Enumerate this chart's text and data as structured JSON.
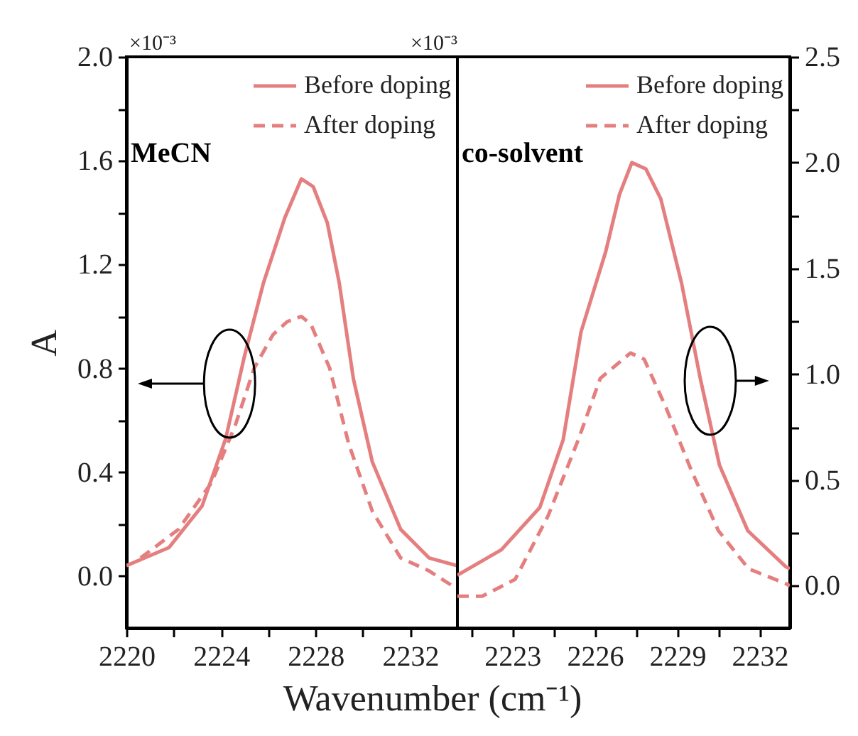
{
  "chart_data": [
    {
      "type": "line",
      "ylabel": "A",
      "xlabel": "Wavenumber  (cm⁻¹)",
      "annotations": [
        "×10⁻³",
        "MeCN"
      ],
      "legend": "top right",
      "grid": false,
      "marker": "none",
      "xlim": [
        2220,
        2234
      ],
      "xticks": [
        2220,
        {
          "value": 2222,
          "label": null
        },
        2224,
        {
          "value": 2226,
          "label": null
        },
        2228,
        {
          "value": 2230,
          "label": null
        },
        2232
      ],
      "ylim": [
        -0.2,
        2.0
      ],
      "yticks": [
        {
          "value": 0,
          "label": "0.0"
        },
        {
          "value": 0.2,
          "label": null
        },
        0.4,
        {
          "value": 0.6,
          "label": null
        },
        0.8,
        {
          "value": 1.0,
          "label": null
        },
        1.2,
        {
          "value": 1.4,
          "label": null
        },
        1.6,
        {
          "value": 1.8,
          "label": null
        },
        {
          "value": 2,
          "label": "2.0"
        }
      ],
      "series": [
        {
          "name": "Before doping",
          "color": "#e57f7f",
          "line_style": "solid",
          "x": [
            2220,
            2221.8,
            2223.2,
            2224.2,
            2225.0,
            2225.8,
            2226.7,
            2227.4,
            2227.9,
            2228.5,
            2229.0,
            2229.6,
            2230.4,
            2231.6,
            2232.8,
            2234
          ],
          "values": [
            0.04,
            0.11,
            0.27,
            0.53,
            0.85,
            1.13,
            1.38,
            1.53,
            1.5,
            1.36,
            1.13,
            0.76,
            0.44,
            0.18,
            0.07,
            0.04
          ]
        },
        {
          "name": "After doping",
          "color": "#e57f7f",
          "line_style": "dashed",
          "x": [
            2220.6,
            2222.2,
            2223.6,
            2224.6,
            2225.4,
            2226.2,
            2226.8,
            2227.4,
            2227.8,
            2228.6,
            2229.4,
            2230.4,
            2231.6,
            2232.8,
            2234
          ],
          "values": [
            0.07,
            0.18,
            0.36,
            0.58,
            0.8,
            0.93,
            0.98,
            1.0,
            0.97,
            0.8,
            0.51,
            0.25,
            0.07,
            0.02,
            -0.05
          ]
        }
      ]
    },
    {
      "type": "line",
      "annotations": [
        "×10⁻³",
        "co-solvent"
      ],
      "legend": "top right",
      "grid": false,
      "marker": "none",
      "xlim": [
        2221,
        2233.1
      ],
      "xticks": [
        {
          "value": 2221.5,
          "label": null
        },
        2223,
        {
          "value": 2224.5,
          "label": null
        },
        2226,
        {
          "value": 2227.5,
          "label": null
        },
        2229,
        {
          "value": 2230.5,
          "label": null
        },
        2232
      ],
      "y2lim": [
        -0.2,
        2.5
      ],
      "y2ticks": [
        {
          "value": 0,
          "label": "0.0"
        },
        {
          "value": 0.25,
          "label": null
        },
        0.5,
        {
          "value": 0.75,
          "label": null
        },
        {
          "value": 1,
          "label": "1.0"
        },
        {
          "value": 1.25,
          "label": null
        },
        1.5,
        {
          "value": 1.75,
          "label": null
        },
        {
          "value": 2,
          "label": "2.0"
        },
        {
          "value": 2.25,
          "label": null
        },
        2.5
      ],
      "series": [
        {
          "name": "Before doping",
          "color": "#e57f7f",
          "line_style": "solid",
          "axis": "y2",
          "x": [
            2221.0,
            2222.6,
            2224.0,
            2224.85,
            2225.5,
            2226.4,
            2226.9,
            2227.35,
            2227.86,
            2228.4,
            2229.16,
            2229.84,
            2230.54,
            2231.57,
            2232.95,
            2233.1
          ],
          "values": [
            0.05,
            0.17,
            0.37,
            0.69,
            1.2,
            1.58,
            1.85,
            2.0,
            1.97,
            1.83,
            1.43,
            0.98,
            0.57,
            0.26,
            0.09,
            0.08
          ]
        },
        {
          "name": "After doping",
          "color": "#e57f7f",
          "line_style": "dashed",
          "axis": "y2",
          "x": [
            2221.0,
            2221.9,
            2223.1,
            2224.3,
            2225.4,
            2226.2,
            2227.3,
            2227.8,
            2228.6,
            2229.5,
            2230.5,
            2231.6,
            2232.95,
            2233.1
          ],
          "values": [
            -0.05,
            -0.05,
            0.03,
            0.33,
            0.69,
            0.98,
            1.1,
            1.07,
            0.84,
            0.55,
            0.26,
            0.08,
            0.01,
            0.0
          ]
        }
      ]
    }
  ]
}
